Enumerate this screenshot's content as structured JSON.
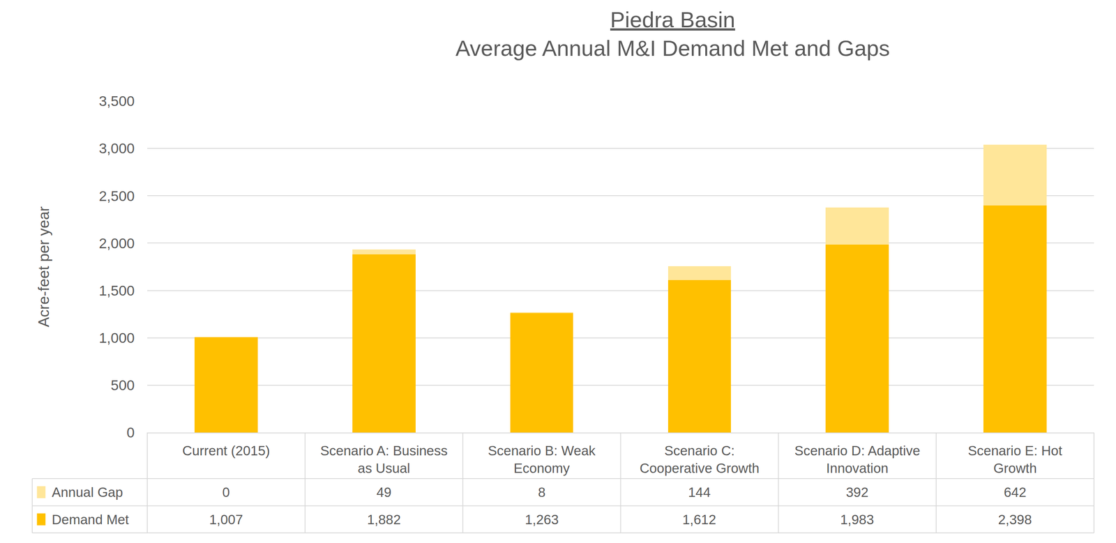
{
  "chart_data": {
    "type": "bar",
    "title": "Piedra Basin",
    "subtitle": "Average Annual M&I Demand Met and Gaps",
    "y_label": "Acre-feet per year",
    "categories": [
      "Current (2015)",
      "Scenario A: Business as Usual",
      "Scenario B: Weak Economy",
      "Scenario C: Cooperative Growth",
      "Scenario D: Adaptive Innovation",
      "Scenario E: Hot Growth"
    ],
    "series": [
      {
        "name": "Demand Met",
        "color": "#ffc000",
        "values": [
          1007,
          1882,
          1263,
          1612,
          1983,
          2398
        ],
        "value_labels": [
          "1,007",
          "1,882",
          "1,263",
          "1,612",
          "1,983",
          "2,398"
        ]
      },
      {
        "name": "Annual Gap",
        "color": "#ffe699",
        "values": [
          0,
          49,
          8,
          144,
          392,
          642
        ]
      }
    ],
    "stacked": true,
    "ylim": [
      0,
      3500
    ],
    "yticks": [
      0,
      500,
      {
        "value": 1000,
        "label": "1,000"
      },
      {
        "value": 1500,
        "label": "1,500"
      },
      {
        "value": 2000,
        "label": "2,000"
      },
      {
        "value": 2500,
        "label": "2,500"
      },
      {
        "value": 3000,
        "label": "3,000"
      },
      {
        "value": 3500,
        "label": "3,500"
      }
    ],
    "grid": true
  }
}
